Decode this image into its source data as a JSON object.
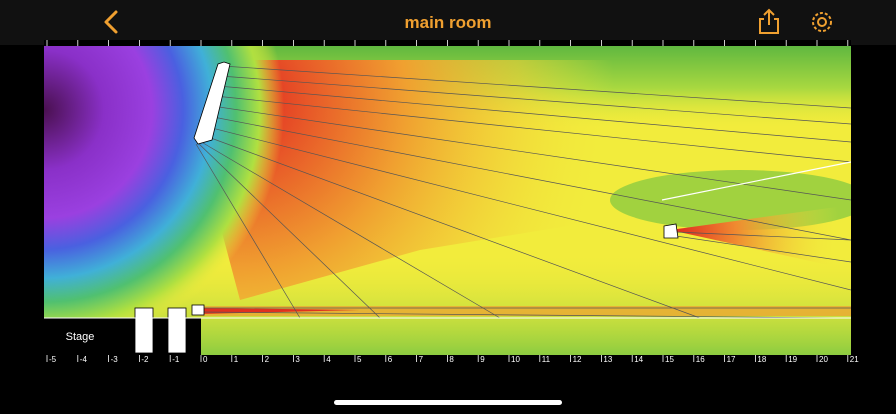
{
  "header": {
    "title": "main room"
  },
  "stage_label": "Stage",
  "ruler": {
    "labels": [
      "-5",
      "-4",
      "-3",
      "-2",
      "-1",
      "0",
      "1",
      "2",
      "3",
      "4",
      "5",
      "6",
      "7",
      "8",
      "9",
      "10",
      "11",
      "12",
      "13",
      "14",
      "15",
      "16",
      "17",
      "18",
      "19",
      "20",
      "21"
    ]
  }
}
